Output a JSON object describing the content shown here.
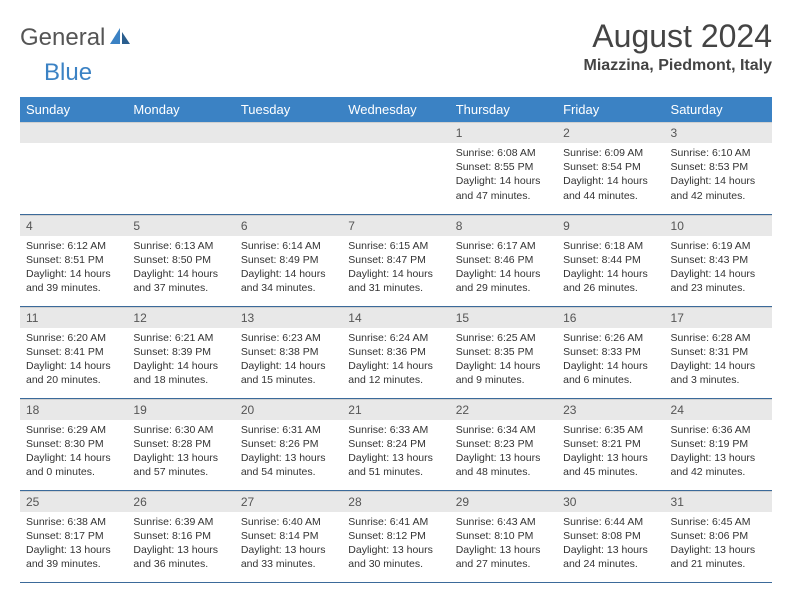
{
  "logo": {
    "text_gray": "General",
    "text_blue": "Blue"
  },
  "title": "August 2024",
  "location": "Miazzina, Piedmont, Italy",
  "colors": {
    "header_bg": "#3b82c4",
    "header_fg": "#ffffff",
    "daynum_bg": "#e8e8e8",
    "row_border": "#3b6a9a",
    "logo_gray": "#555555",
    "logo_blue": "#3b82c4"
  },
  "typography": {
    "title_fontsize": 32,
    "location_fontsize": 16,
    "weekday_fontsize": 13,
    "daynum_fontsize": 12,
    "body_fontsize": 10.5
  },
  "weekdays": [
    "Sunday",
    "Monday",
    "Tuesday",
    "Wednesday",
    "Thursday",
    "Friday",
    "Saturday"
  ],
  "weeks": [
    [
      null,
      null,
      null,
      null,
      {
        "n": "1",
        "sunrise": "6:08 AM",
        "sunset": "8:55 PM",
        "daylight": "14 hours and 47 minutes."
      },
      {
        "n": "2",
        "sunrise": "6:09 AM",
        "sunset": "8:54 PM",
        "daylight": "14 hours and 44 minutes."
      },
      {
        "n": "3",
        "sunrise": "6:10 AM",
        "sunset": "8:53 PM",
        "daylight": "14 hours and 42 minutes."
      }
    ],
    [
      {
        "n": "4",
        "sunrise": "6:12 AM",
        "sunset": "8:51 PM",
        "daylight": "14 hours and 39 minutes."
      },
      {
        "n": "5",
        "sunrise": "6:13 AM",
        "sunset": "8:50 PM",
        "daylight": "14 hours and 37 minutes."
      },
      {
        "n": "6",
        "sunrise": "6:14 AM",
        "sunset": "8:49 PM",
        "daylight": "14 hours and 34 minutes."
      },
      {
        "n": "7",
        "sunrise": "6:15 AM",
        "sunset": "8:47 PM",
        "daylight": "14 hours and 31 minutes."
      },
      {
        "n": "8",
        "sunrise": "6:17 AM",
        "sunset": "8:46 PM",
        "daylight": "14 hours and 29 minutes."
      },
      {
        "n": "9",
        "sunrise": "6:18 AM",
        "sunset": "8:44 PM",
        "daylight": "14 hours and 26 minutes."
      },
      {
        "n": "10",
        "sunrise": "6:19 AM",
        "sunset": "8:43 PM",
        "daylight": "14 hours and 23 minutes."
      }
    ],
    [
      {
        "n": "11",
        "sunrise": "6:20 AM",
        "sunset": "8:41 PM",
        "daylight": "14 hours and 20 minutes."
      },
      {
        "n": "12",
        "sunrise": "6:21 AM",
        "sunset": "8:39 PM",
        "daylight": "14 hours and 18 minutes."
      },
      {
        "n": "13",
        "sunrise": "6:23 AM",
        "sunset": "8:38 PM",
        "daylight": "14 hours and 15 minutes."
      },
      {
        "n": "14",
        "sunrise": "6:24 AM",
        "sunset": "8:36 PM",
        "daylight": "14 hours and 12 minutes."
      },
      {
        "n": "15",
        "sunrise": "6:25 AM",
        "sunset": "8:35 PM",
        "daylight": "14 hours and 9 minutes."
      },
      {
        "n": "16",
        "sunrise": "6:26 AM",
        "sunset": "8:33 PM",
        "daylight": "14 hours and 6 minutes."
      },
      {
        "n": "17",
        "sunrise": "6:28 AM",
        "sunset": "8:31 PM",
        "daylight": "14 hours and 3 minutes."
      }
    ],
    [
      {
        "n": "18",
        "sunrise": "6:29 AM",
        "sunset": "8:30 PM",
        "daylight": "14 hours and 0 minutes."
      },
      {
        "n": "19",
        "sunrise": "6:30 AM",
        "sunset": "8:28 PM",
        "daylight": "13 hours and 57 minutes."
      },
      {
        "n": "20",
        "sunrise": "6:31 AM",
        "sunset": "8:26 PM",
        "daylight": "13 hours and 54 minutes."
      },
      {
        "n": "21",
        "sunrise": "6:33 AM",
        "sunset": "8:24 PM",
        "daylight": "13 hours and 51 minutes."
      },
      {
        "n": "22",
        "sunrise": "6:34 AM",
        "sunset": "8:23 PM",
        "daylight": "13 hours and 48 minutes."
      },
      {
        "n": "23",
        "sunrise": "6:35 AM",
        "sunset": "8:21 PM",
        "daylight": "13 hours and 45 minutes."
      },
      {
        "n": "24",
        "sunrise": "6:36 AM",
        "sunset": "8:19 PM",
        "daylight": "13 hours and 42 minutes."
      }
    ],
    [
      {
        "n": "25",
        "sunrise": "6:38 AM",
        "sunset": "8:17 PM",
        "daylight": "13 hours and 39 minutes."
      },
      {
        "n": "26",
        "sunrise": "6:39 AM",
        "sunset": "8:16 PM",
        "daylight": "13 hours and 36 minutes."
      },
      {
        "n": "27",
        "sunrise": "6:40 AM",
        "sunset": "8:14 PM",
        "daylight": "13 hours and 33 minutes."
      },
      {
        "n": "28",
        "sunrise": "6:41 AM",
        "sunset": "8:12 PM",
        "daylight": "13 hours and 30 minutes."
      },
      {
        "n": "29",
        "sunrise": "6:43 AM",
        "sunset": "8:10 PM",
        "daylight": "13 hours and 27 minutes."
      },
      {
        "n": "30",
        "sunrise": "6:44 AM",
        "sunset": "8:08 PM",
        "daylight": "13 hours and 24 minutes."
      },
      {
        "n": "31",
        "sunrise": "6:45 AM",
        "sunset": "8:06 PM",
        "daylight": "13 hours and 21 minutes."
      }
    ]
  ],
  "labels": {
    "sunrise": "Sunrise:",
    "sunset": "Sunset:",
    "daylight": "Daylight:"
  }
}
